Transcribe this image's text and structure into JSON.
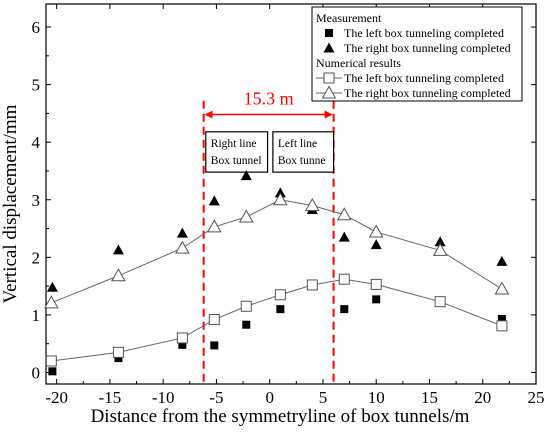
{
  "chart_data": {
    "type": "scatter",
    "xlabel": "Distance from the symmetryline of box tunnels/m",
    "ylabel": "Vertical displacement/mm",
    "xlim": [
      -21,
      25
    ],
    "ylim": [
      -0.2,
      6.4
    ],
    "x_ticks": [
      -20,
      -15,
      -10,
      -5,
      0,
      5,
      10,
      15,
      20,
      25
    ],
    "y_ticks": [
      0,
      1,
      2,
      3,
      4,
      5,
      6
    ],
    "grid": false,
    "legend_position": "top-right",
    "legend": {
      "group1_title": "Measurement",
      "group2_title": "Numerical results"
    },
    "series": [
      {
        "name": "The left box tunneling completed",
        "group": "Measurement",
        "marker": "filled-square",
        "color": "#000000",
        "x": [
          -20.4,
          -14.2,
          -8.2,
          -5.2,
          -2.2,
          1.0,
          4.0,
          7.0,
          10.0,
          16.0,
          21.8
        ],
        "y": [
          0.02,
          0.25,
          0.48,
          0.47,
          0.83,
          1.1,
          1.5,
          1.1,
          1.27,
          1.25,
          0.93
        ]
      },
      {
        "name": "The right box tunneling completed",
        "group": "Measurement",
        "marker": "filled-triangle",
        "color": "#000000",
        "x": [
          -20.4,
          -14.2,
          -8.2,
          -5.2,
          -2.2,
          1.0,
          4.0,
          7.0,
          10.0,
          16.0,
          21.8
        ],
        "y": [
          1.48,
          2.13,
          2.42,
          2.98,
          3.42,
          3.12,
          2.83,
          2.35,
          2.22,
          2.27,
          1.93
        ]
      },
      {
        "name": "The left box tunneling completed",
        "group": "Numerical results",
        "marker": "open-square",
        "line": true,
        "color": "#555555",
        "x": [
          -20.5,
          -14.2,
          -8.2,
          -5.2,
          -2.2,
          1.0,
          4.0,
          7.0,
          10.0,
          16.0,
          21.8
        ],
        "y": [
          0.2,
          0.35,
          0.6,
          0.92,
          1.15,
          1.35,
          1.52,
          1.62,
          1.53,
          1.23,
          0.81
        ]
      },
      {
        "name": "The right box tunneling completed",
        "group": "Numerical results",
        "marker": "open-triangle",
        "line": true,
        "color": "#555555",
        "x": [
          -20.5,
          -14.2,
          -8.2,
          -5.2,
          -2.2,
          1.0,
          4.0,
          7.0,
          10.0,
          16.0,
          21.8
        ],
        "y": [
          1.21,
          1.68,
          2.16,
          2.53,
          2.7,
          3.0,
          2.9,
          2.74,
          2.44,
          2.12,
          1.45
        ]
      }
    ],
    "annotations": {
      "dim_label": "15.3 m",
      "dim_color": "#ff0000",
      "vlines_x": [
        -6.2,
        6.0
      ],
      "dim_arrow_y": 4.48,
      "box_left_lines": [
        "Right line",
        "Box tunnel"
      ],
      "box_right_lines": [
        "Left line",
        "Box tunne"
      ],
      "box_y_range": [
        3.48,
        4.18
      ],
      "box_left_x": [
        -6.0,
        -0.2
      ],
      "box_right_x": [
        0.3,
        6.0
      ]
    }
  }
}
